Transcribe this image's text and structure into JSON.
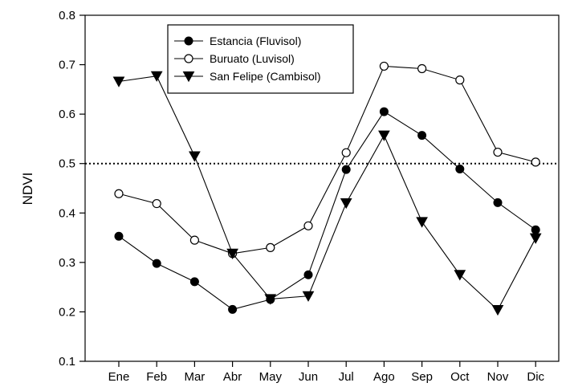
{
  "chart_data": {
    "type": "line",
    "title": "",
    "xlabel": "",
    "ylabel": "NDVI",
    "ylim": [
      0.1,
      0.8
    ],
    "yticks": [
      0.1,
      0.2,
      0.3,
      0.4,
      0.5,
      0.6,
      0.7,
      0.8
    ],
    "categories": [
      "Ene",
      "Feb",
      "Mar",
      "Abr",
      "May",
      "Jun",
      "Jul",
      "Ago",
      "Sep",
      "Oct",
      "Nov",
      "Dic"
    ],
    "grid": false,
    "legend_position": "top-left",
    "reference_line": {
      "y": 0.5,
      "style": "dotted"
    },
    "series": [
      {
        "name": "Estancia (Fluvisol)",
        "marker": "filled-circle",
        "values": [
          0.353,
          0.298,
          0.261,
          0.205,
          0.225,
          0.275,
          0.488,
          0.605,
          0.557,
          0.489,
          0.421,
          0.366
        ]
      },
      {
        "name": "Buruato (Luvisol)",
        "marker": "open-circle",
        "values": [
          0.439,
          0.419,
          0.345,
          0.318,
          0.33,
          0.374,
          0.522,
          0.697,
          0.692,
          0.669,
          0.523,
          0.503
        ]
      },
      {
        "name": "San Felipe (Cambisol)",
        "marker": "filled-triangle-down",
        "values": [
          0.666,
          0.677,
          0.515,
          0.318,
          0.226,
          0.232,
          0.42,
          0.557,
          0.382,
          0.275,
          0.204,
          0.349
        ]
      }
    ]
  }
}
